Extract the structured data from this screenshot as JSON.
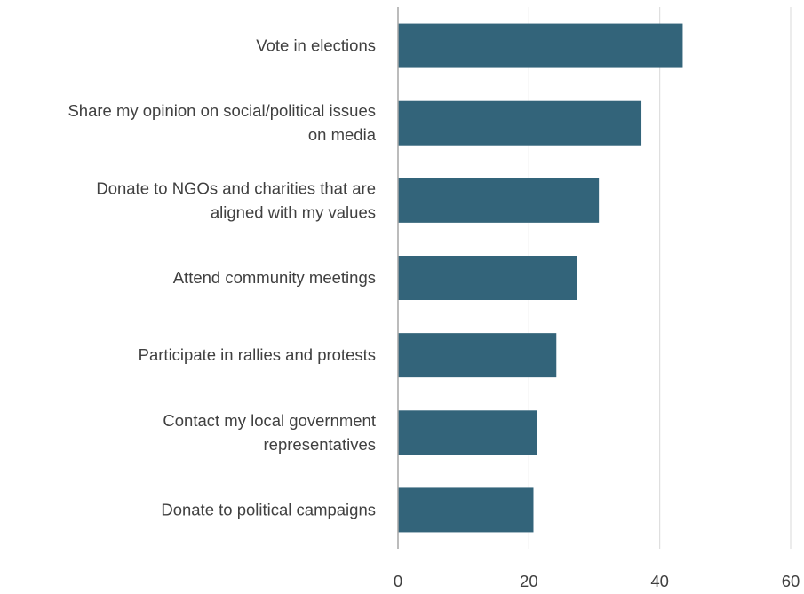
{
  "chart_data": {
    "type": "bar",
    "orientation": "horizontal",
    "title": "",
    "xlabel": "",
    "ylabel": "",
    "categories": [
      [
        "Vote in elections"
      ],
      [
        "Share my opinion on social/political issues",
        "on media"
      ],
      [
        "Donate to NGOs and charities that are",
        "aligned with my values"
      ],
      [
        "Attend community meetings"
      ],
      [
        "Participate in rallies and protests"
      ],
      [
        "Contact my local government",
        "representatives"
      ],
      [
        "Donate to political campaigns"
      ]
    ],
    "values": [
      43.5,
      37.2,
      30.7,
      27.3,
      24.2,
      21.2,
      20.7
    ],
    "xlim": [
      0,
      60
    ],
    "xticks": [
      "0",
      "20",
      "40",
      "60"
    ],
    "grid": true,
    "legend": "none",
    "colors": {
      "bar": "#33647a",
      "grid": "#d9d9d9",
      "axis": "#a6a6a6",
      "text": "#404040"
    }
  }
}
